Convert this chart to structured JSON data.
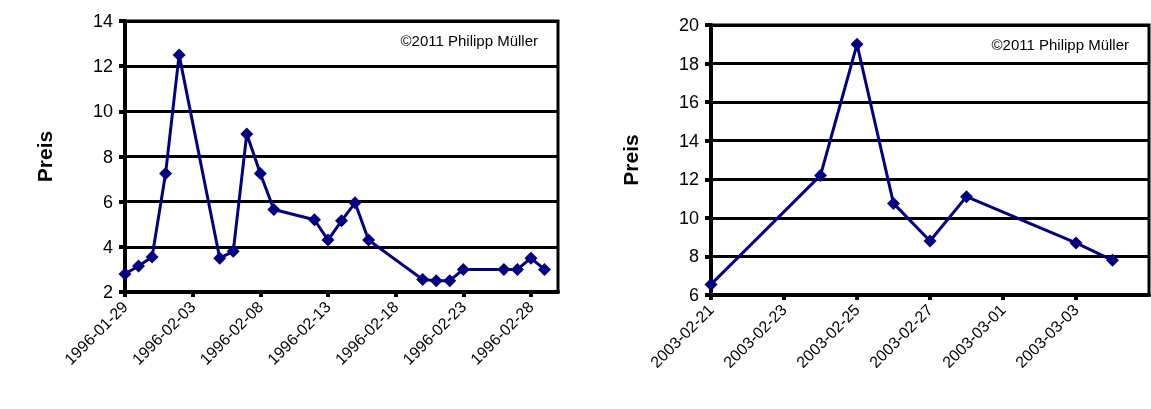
{
  "chart_data": [
    {
      "type": "line",
      "ylabel": "Preis",
      "annotations": [
        "©2011 Philipp Müller"
      ],
      "x": [
        "1996-01-29",
        "1996-01-30",
        "1996-01-31",
        "1996-02-01",
        "1996-02-02",
        "1996-02-05",
        "1996-02-06",
        "1996-02-07",
        "1996-02-08",
        "1996-02-09",
        "1996-02-12",
        "1996-02-13",
        "1996-02-14",
        "1996-02-15",
        "1996-02-16",
        "1996-02-20",
        "1996-02-21",
        "1996-02-22",
        "1996-02-23",
        "1996-02-26",
        "1996-02-27",
        "1996-02-28",
        "1996-02-29"
      ],
      "series": [
        {
          "color": "#000080",
          "values": [
            2.8,
            3.15,
            3.55,
            7.25,
            12.5,
            3.5,
            3.8,
            9.0,
            7.25,
            5.65,
            5.2,
            4.3,
            5.15,
            5.95,
            4.3,
            2.55,
            2.5,
            2.5,
            3.0,
            3.0,
            3.0,
            3.5,
            3.0
          ]
        }
      ],
      "xlim": [
        "1996-01-29",
        "1996-03-01"
      ],
      "xticks": [
        "1996-01-29",
        "1996-02-03",
        "1996-02-08",
        "1996-02-13",
        "1996-02-18",
        "1996-02-23",
        "1996-02-28"
      ],
      "ylim": [
        2,
        14
      ],
      "yticks": [
        2,
        4,
        6,
        8,
        10,
        12,
        14
      ],
      "grid": "y",
      "marker": "diamond",
      "line_style": "solid"
    },
    {
      "type": "line",
      "ylabel": "Preis",
      "annotations": [
        "©2011 Philipp Müller"
      ],
      "x": [
        "2003-02-21",
        "2003-02-24",
        "2003-02-25",
        "2003-02-26",
        "2003-02-27",
        "2003-02-28",
        "2003-03-03",
        "2003-03-04"
      ],
      "series": [
        {
          "color": "#000080",
          "values": [
            6.55,
            12.2,
            19.0,
            10.75,
            8.8,
            11.1,
            8.7,
            7.8
          ]
        }
      ],
      "xlim": [
        "2003-02-21",
        "2003-03-05"
      ],
      "xticks": [
        "2003-02-21",
        "2003-02-23",
        "2003-02-25",
        "2003-02-27",
        "2003-03-01",
        "2003-03-03"
      ],
      "ylim": [
        6,
        20
      ],
      "yticks": [
        6,
        8,
        10,
        12,
        14,
        16,
        18,
        20
      ],
      "grid": "y",
      "marker": "diamond",
      "line_style": "solid"
    }
  ]
}
